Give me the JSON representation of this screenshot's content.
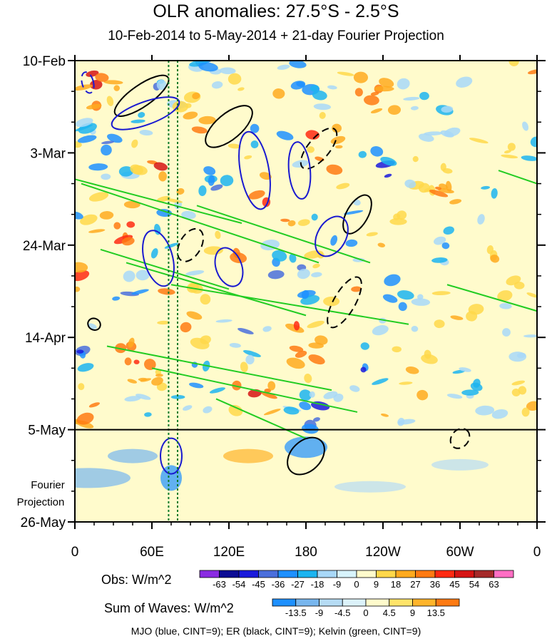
{
  "chart_data": {
    "type": "heatmap",
    "title": "OLR anomalies: 27.5°S - 2.5°S",
    "subtitle": "10-Feb-2014 to 5-May-2014 + 21-day Fourier Projection",
    "x_tick_labels": [
      "0",
      "60E",
      "120E",
      "180",
      "120W",
      "60W",
      "0"
    ],
    "x_ticks_deg_east": [
      0,
      60,
      120,
      180,
      240,
      300,
      360
    ],
    "y_tick_labels": [
      "10-Feb",
      "3-Mar",
      "24-Mar",
      "14-Apr",
      "5-May",
      "26-May"
    ],
    "y_ticks_day": [
      0,
      21,
      42,
      63,
      84,
      105
    ],
    "y_extra_label_lines": [
      "Fourier",
      "Projection"
    ],
    "projection_start_day": 84,
    "dotted_longitudes": [
      73,
      80
    ],
    "obs_colorbar": {
      "label": "Obs: W/m^2",
      "ticks": [
        "-63",
        "-54",
        "-45",
        "-36",
        "-27",
        "-18",
        "-9",
        "0",
        "9",
        "18",
        "27",
        "36",
        "45",
        "54",
        "63"
      ],
      "colors": [
        "#8a2be2",
        "#0c0c94",
        "#1a1adc",
        "#4a6edc",
        "#1e90ff",
        "#1cb4f0",
        "#a8d8f8",
        "#d8f4fc",
        "#fffbcc",
        "#ffd84a",
        "#ffaa1e",
        "#ff7a12",
        "#ff2a12",
        "#d61414",
        "#a52a2a",
        "#ff6ec4"
      ]
    },
    "waves_colorbar": {
      "label": "Sum of Waves: W/m^2",
      "ticks": [
        "-13.5",
        "-9",
        "-4.5",
        "0",
        "4.5",
        "9",
        "13.5"
      ],
      "colors": [
        "#1e90ff",
        "#78b6ee",
        "#b6dcf4",
        "#dcf2fa",
        "#fffbcc",
        "#ffe46a",
        "#ffb42a",
        "#ff7a12"
      ]
    },
    "contours_caption": "MJO (blue, CINT=9); ER (black, CINT=9); Kelvin (green, CINT=9)",
    "mjo_color": "#1a1ad0",
    "er_color": "#000000",
    "kelvin_color": "#22cc22"
  }
}
